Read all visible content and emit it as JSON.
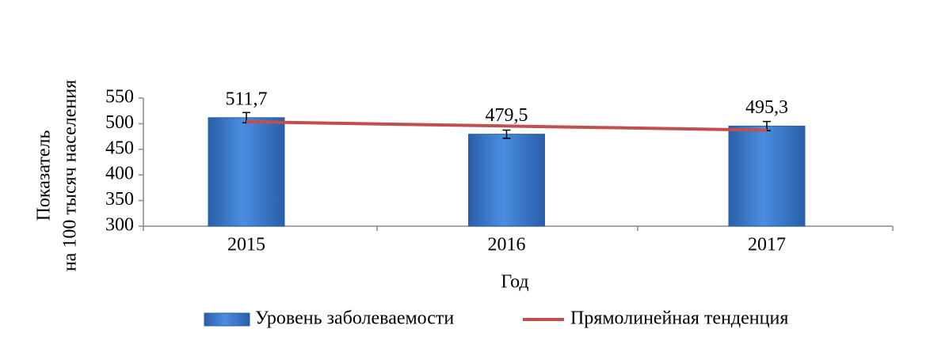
{
  "chart_data": {
    "type": "bar",
    "categories": [
      "2015",
      "2016",
      "2017"
    ],
    "x_label": "Год",
    "y_label": [
      "Показатель",
      "на 100 тысяч населения"
    ],
    "ylim": [
      300,
      550
    ],
    "yticks": [
      300,
      350,
      400,
      450,
      500,
      550
    ],
    "legend": "bottom",
    "series": [
      {
        "name": "Уровень заболеваемости",
        "type": "bar",
        "color": "#3a78c8",
        "values": [
          511.7,
          479.5,
          495.3
        ],
        "value_labels": [
          "511,7",
          "479,5",
          "495,3"
        ],
        "errors": [
          10,
          8,
          9
        ]
      },
      {
        "name": "Прямолинейная тенденция",
        "type": "line",
        "color": "#c0504d",
        "values": [
          503.7,
          495.5,
          487.3
        ]
      }
    ]
  }
}
